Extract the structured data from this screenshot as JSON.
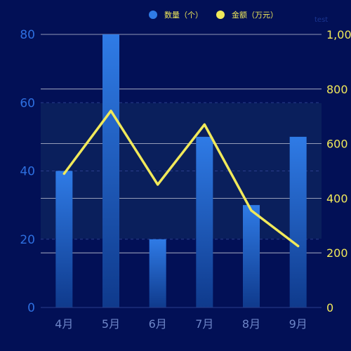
{
  "colors": {
    "background": "#021056",
    "bar_top": "#2F7BE6",
    "bar_bottom": "#0F3A8C",
    "line": "#F1E95A",
    "left_axis_text": "#2E6FE0",
    "right_axis_text": "#F1E95A",
    "x_axis_text": "#6E86C8",
    "grid": "#FFFFFF",
    "dashed_grid": "#2A3E8C",
    "watermark": "#1A3590",
    "legend_text": "#F1E95A"
  },
  "watermark": "test",
  "chart_data": {
    "type": "bar",
    "categories": [
      "4月",
      "5月",
      "6月",
      "7月",
      "8月",
      "9月"
    ],
    "series": [
      {
        "name": "数量（个）",
        "type": "bar",
        "axis": "left",
        "values": [
          40,
          80,
          20,
          50,
          30,
          50
        ]
      },
      {
        "name": "金额（万元）",
        "type": "line",
        "axis": "right",
        "values": [
          490,
          720,
          450,
          670,
          355,
          225
        ]
      }
    ],
    "y_left": {
      "min": 0,
      "max": 80,
      "ticks": [
        0,
        20,
        40,
        60,
        80
      ],
      "tick_labels": [
        "0",
        "20",
        "40",
        "60",
        "80"
      ]
    },
    "y_right": {
      "min": 0,
      "max": 1000,
      "ticks": [
        0,
        200,
        400,
        600,
        800,
        1000
      ],
      "tick_labels": [
        "0",
        "200",
        "400",
        "600",
        "800",
        "1,000"
      ]
    },
    "legend_position": "top-right",
    "grid": true
  }
}
